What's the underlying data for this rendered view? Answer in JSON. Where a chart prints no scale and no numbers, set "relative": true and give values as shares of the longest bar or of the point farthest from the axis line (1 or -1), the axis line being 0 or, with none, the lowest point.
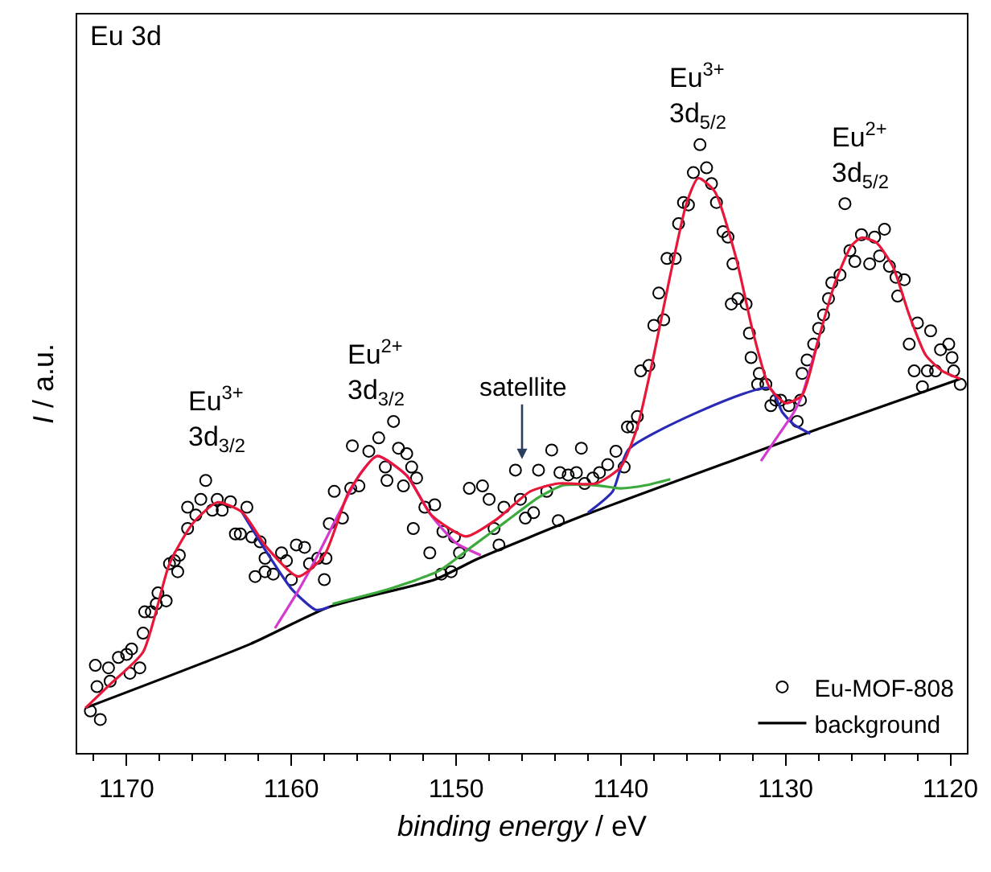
{
  "chart_data": {
    "type": "line",
    "relative": true,
    "xlabel": "binding energy / eV",
    "ylabel": "I / a.u.",
    "xlim": [
      1173,
      1119
    ],
    "xticks": [
      1170,
      1160,
      1150,
      1140,
      1130,
      1120
    ],
    "legend": "bottom right",
    "annotations": [
      "Eu 3d",
      {
        "text": "Eu$^{3+}$\n3d$_{3/2}$",
        "x": 1164.5,
        "y": 0.412
      },
      {
        "text": "Eu$^{2+}$\n3d$_{3/2}$",
        "x": 1154.8,
        "y": 0.488
      },
      {
        "text": "satellite",
        "x": 1146.0,
        "y": 0.483
      },
      {
        "text": "Eu$^{3+}$\n3d$_{5/2}$",
        "x": 1135.3,
        "y": 0.945
      },
      {
        "text": "Eu$^{2+}$\n3d$_{5/2}$",
        "x": 1125.4,
        "y": 0.847
      }
    ],
    "series": [
      {
        "name": "Eu-MOF-808",
        "type": "scatter",
        "marker": "circle",
        "color": "#000000",
        "x": [
          1172.2,
          1171.6,
          1171.9,
          1171.8,
          1171.1,
          1171.0,
          1170.5,
          1170.0,
          1169.7,
          1169.8,
          1169.2,
          1169.0,
          1168.9,
          1168.5,
          1168.2,
          1168.1,
          1167.6,
          1167.4,
          1167.1,
          1166.9,
          1166.8,
          1166.3,
          1165.8,
          1166.3,
          1165.5,
          1165.2,
          1164.8,
          1164.5,
          1164.2,
          1163.7,
          1163.4,
          1163.1,
          1162.7,
          1162.4,
          1161.9,
          1161.6,
          1162.2,
          1161.6,
          1161.1,
          1160.6,
          1160.3,
          1160.0,
          1159.7,
          1159.2,
          1158.9,
          1158.0,
          1158.4,
          1157.9,
          1157.7,
          1157.4,
          1156.9,
          1156.4,
          1156.3,
          1155.9,
          1155.3,
          1154.7,
          1153.8,
          1154.3,
          1154.2,
          1153.5,
          1153.0,
          1153.2,
          1152.7,
          1152.4,
          1152.6,
          1151.9,
          1151.6,
          1151.3,
          1150.9,
          1150.3,
          1150.8,
          1150.1,
          1149.8,
          1149.2,
          1148.4,
          1148.0,
          1147.4,
          1147.7,
          1147.1,
          1146.4,
          1146.1,
          1145.0,
          1145.8,
          1145.3,
          1144.5,
          1144.2,
          1143.7,
          1143.8,
          1143.2,
          1142.7,
          1142.4,
          1142.2,
          1141.7,
          1141.3,
          1140.8,
          1140.3,
          1139.8,
          1139.6,
          1139.3,
          1139.0,
          1138.8,
          1138.3,
          1138.0,
          1137.7,
          1137.4,
          1137.2,
          1136.7,
          1136.5,
          1136.2,
          1135.9,
          1135.6,
          1135.2,
          1134.8,
          1134.5,
          1134.2,
          1133.8,
          1133.5,
          1133.2,
          1133.3,
          1132.9,
          1132.4,
          1132.2,
          1132.1,
          1131.6,
          1131.2,
          1131.7,
          1130.9,
          1130.6,
          1130.3,
          1129.8,
          1129.3,
          1129.1,
          1129.0,
          1128.7,
          1128.3,
          1128.0,
          1127.7,
          1127.4,
          1127.2,
          1126.7,
          1126.4,
          1126.1,
          1125.8,
          1125.4,
          1124.9,
          1124.6,
          1124.3,
          1124.0,
          1123.7,
          1123.3,
          1123.2,
          1122.8,
          1122.5,
          1122.0,
          1122.2,
          1121.7,
          1121.2,
          1121.4,
          1120.9,
          1120.6,
          1120.1,
          1119.9,
          1119.8,
          1119.4
        ],
        "values": [
          0.069,
          0.055,
          0.144,
          0.109,
          0.14,
          0.118,
          0.157,
          0.162,
          0.171,
          0.131,
          0.14,
          0.197,
          0.232,
          0.232,
          0.245,
          0.263,
          0.25,
          0.311,
          0.316,
          0.298,
          0.325,
          0.369,
          0.391,
          0.404,
          0.417,
          0.448,
          0.399,
          0.417,
          0.399,
          0.413,
          0.36,
          0.36,
          0.404,
          0.355,
          0.347,
          0.32,
          0.29,
          0.298,
          0.294,
          0.329,
          0.316,
          0.285,
          0.342,
          0.338,
          0.311,
          0.285,
          0.32,
          0.32,
          0.377,
          0.43,
          0.386,
          0.435,
          0.505,
          0.439,
          0.496,
          0.518,
          0.545,
          0.47,
          0.448,
          0.501,
          0.492,
          0.439,
          0.47,
          0.452,
          0.369,
          0.404,
          0.329,
          0.408,
          0.294,
          0.298,
          0.364,
          0.355,
          0.329,
          0.435,
          0.439,
          0.417,
          0.342,
          0.369,
          0.404,
          0.465,
          0.417,
          0.465,
          0.386,
          0.395,
          0.43,
          0.498,
          0.461,
          0.382,
          0.457,
          0.461,
          0.501,
          0.443,
          0.452,
          0.461,
          0.474,
          0.496,
          0.47,
          0.536,
          0.536,
          0.553,
          0.628,
          0.637,
          0.703,
          0.756,
          0.712,
          0.813,
          0.813,
          0.87,
          0.905,
          0.901,
          0.954,
          1.0,
          0.962,
          0.936,
          0.905,
          0.857,
          0.848,
          0.804,
          0.738,
          0.747,
          0.738,
          0.69,
          0.65,
          0.624,
          0.606,
          0.606,
          0.571,
          0.58,
          0.58,
          0.571,
          0.545,
          0.58,
          0.624,
          0.646,
          0.672,
          0.698,
          0.72,
          0.747,
          0.773,
          0.786,
          0.903,
          0.826,
          0.808,
          0.852,
          0.804,
          0.848,
          0.817,
          0.861,
          0.8,
          0.782,
          0.751,
          0.778,
          0.672,
          0.707,
          0.628,
          0.602,
          0.694,
          0.628,
          0.628,
          0.663,
          0.672,
          0.65,
          0.628,
          0.606
        ]
      },
      {
        "name": "background",
        "color": "#000000",
        "line_style": "solid",
        "x": [
          1172.5,
          1162.5,
          1157.7,
          1151.3,
          1148.7,
          1142.2,
          1132.5,
          1128.3,
          1119.4
        ],
        "values": [
          0.074,
          0.179,
          0.24,
          0.285,
          0.319,
          0.391,
          0.488,
          0.53,
          0.615
        ]
      },
      {
        "color": "#2a2ab8",
        "line_style": "solid",
        "x": [
          1163,
          1161.5,
          1160,
          1158.5,
          1157.7,
          1150,
          1142,
          1140.5,
          1139.5,
          1131,
          1130.2,
          1129.5,
          1128.5
        ],
        "values": [
          0.396,
          0.33,
          0.27,
          0.235,
          0.24,
          null,
          0.395,
          0.43,
          0.5,
          0.6,
          0.56,
          0.54,
          0.525
        ]
      },
      {
        "color": "#d43ad0",
        "line_style": "solid",
        "x": [
          1161,
          1159.6,
          1158.5,
          1157,
          1155.8,
          1154.8,
          1153,
          1151.5,
          1150,
          1148.5,
          1140,
          1131.5,
          1130.5,
          1129.5,
          1129,
          1128
        ],
        "values": [
          0.205,
          0.266,
          0.32,
          0.4,
          0.46,
          0.488,
          0.456,
          0.39,
          0.345,
          0.325,
          null,
          0.48,
          0.52,
          0.56,
          0.588,
          0.681
        ]
      },
      {
        "color": "#3caa3c",
        "line_style": "solid",
        "x": [
          1157.5,
          1154,
          1151,
          1149,
          1147,
          1145,
          1143.5,
          1141.5,
          1140,
          1138.5,
          1137
        ],
        "values": [
          0.245,
          0.27,
          0.3,
          0.34,
          0.38,
          0.42,
          0.44,
          0.44,
          0.435,
          0.44,
          0.45
        ]
      },
      {
        "color": "#e8173a",
        "line_style": "solid",
        "x": [
          1172.5,
          1171,
          1169,
          1167.4,
          1166,
          1164.5,
          1163,
          1161.5,
          1159.6,
          1158,
          1156.5,
          1154.8,
          1153,
          1151.5,
          1149.4,
          1147.5,
          1145.5,
          1143.8,
          1141.5,
          1140,
          1139,
          1138,
          1137,
          1136,
          1135.3,
          1134.3,
          1133,
          1132,
          1131,
          1130,
          1129,
          1128,
          1127,
          1126,
          1125.4,
          1124.5,
          1123.5,
          1122.5,
          1121.5,
          1120.5,
          1119.4
        ],
        "values": [
          0.074,
          0.113,
          0.166,
          0.311,
          0.377,
          0.412,
          0.396,
          0.338,
          0.29,
          0.325,
          0.43,
          0.488,
          0.456,
          0.391,
          0.356,
          0.385,
          0.43,
          0.443,
          0.443,
          0.47,
          0.536,
          0.654,
          0.786,
          0.905,
          0.945,
          0.923,
          0.813,
          0.694,
          0.602,
          0.575,
          0.588,
          0.681,
          0.773,
          0.834,
          0.847,
          0.839,
          0.8,
          0.72,
          0.654,
          0.628,
          0.615
        ]
      }
    ]
  }
}
